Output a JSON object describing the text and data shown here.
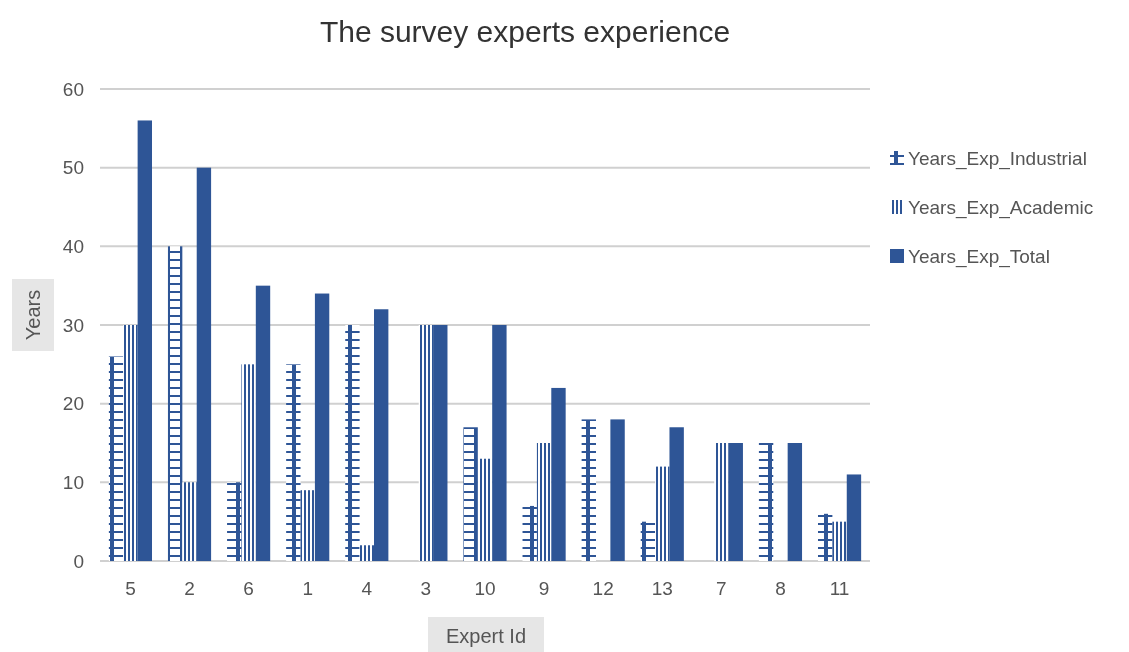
{
  "chart_data": {
    "type": "bar",
    "title": "The survey experts experience",
    "xlabel": "Expert Id",
    "ylabel": "Years",
    "categories": [
      "5",
      "2",
      "6",
      "1",
      "4",
      "3",
      "10",
      "9",
      "12",
      "13",
      "7",
      "8",
      "11"
    ],
    "series": [
      {
        "name": "Years_Exp_Industrial",
        "color": "#2e5596",
        "values": [
          26,
          40,
          10,
          25,
          30,
          0,
          17,
          7,
          18,
          5,
          0,
          15,
          6
        ]
      },
      {
        "name": "Years_Exp_Academic",
        "color": "#2e5596",
        "values": [
          30,
          10,
          25,
          9,
          2,
          30,
          13,
          15,
          0,
          12,
          15,
          0,
          5
        ]
      },
      {
        "name": "Years_Exp_Total",
        "color": "#2e5596",
        "values": [
          56,
          50,
          35,
          34,
          32,
          30,
          30,
          22,
          18,
          17,
          15,
          15,
          11
        ]
      }
    ],
    "ylim": [
      0,
      60
    ],
    "yticks": [
      0,
      10,
      20,
      30,
      40,
      50,
      60
    ],
    "grid": "y",
    "legend": "right"
  }
}
